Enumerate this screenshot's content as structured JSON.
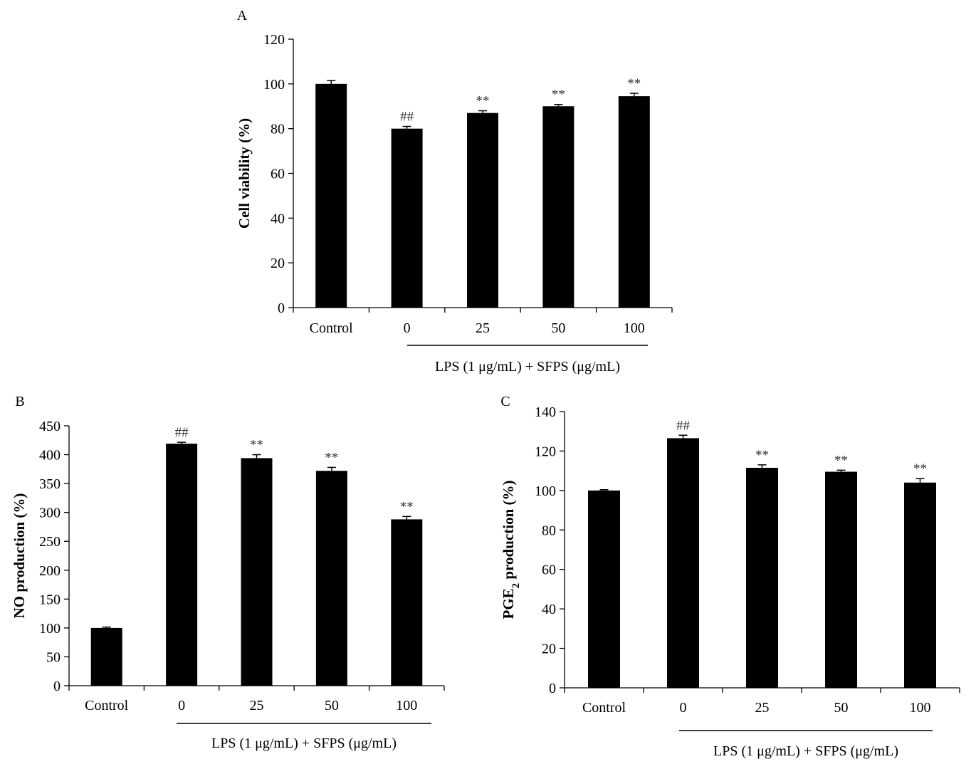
{
  "chart_data": [
    {
      "type": "bar",
      "panel": "A",
      "categories": [
        "Control",
        "0",
        "25",
        "50",
        "100"
      ],
      "values": [
        100,
        80,
        87,
        90,
        94.5
      ],
      "errors": [
        1.5,
        1,
        1,
        0.8,
        1.3
      ],
      "significance": [
        "",
        "##",
        "**",
        "**",
        "**"
      ],
      "ylabel": "Cell viability (%)",
      "group_label": "LPS (1 μg/mL) + SFPS (μg/mL)",
      "ylim": [
        0,
        120
      ],
      "yticks": [
        0,
        20,
        40,
        60,
        80,
        100,
        120
      ],
      "color": "#000000"
    },
    {
      "type": "bar",
      "panel": "B",
      "categories": [
        "Control",
        "0",
        "25",
        "50",
        "100"
      ],
      "values": [
        100,
        419,
        394,
        372,
        288
      ],
      "errors": [
        1.5,
        2.5,
        6,
        6,
        5
      ],
      "significance": [
        "",
        "##",
        "**",
        "**",
        "**"
      ],
      "ylabel": "NO production (%)",
      "group_label": "LPS (1 μg/mL) + SFPS (μg/mL)",
      "ylim": [
        0,
        450
      ],
      "yticks": [
        0,
        50,
        100,
        150,
        200,
        250,
        300,
        350,
        400,
        450
      ],
      "color": "#000000"
    },
    {
      "type": "bar",
      "panel": "C",
      "categories": [
        "Control",
        "0",
        "25",
        "50",
        "100"
      ],
      "values": [
        100,
        126.5,
        111.5,
        109.5,
        104
      ],
      "errors": [
        0.4,
        1.5,
        1.5,
        0.8,
        2
      ],
      "significance": [
        "",
        "##",
        "**",
        "**",
        "**"
      ],
      "ylabel": "PGE2 production (%)",
      "ylabel_parts": {
        "main": "PGE",
        "sub": "2",
        "rest": " production (%)"
      },
      "group_label": "LPS (1 μg/mL) + SFPS (μg/mL)",
      "ylim": [
        0,
        140
      ],
      "yticks": [
        0,
        20,
        40,
        60,
        80,
        100,
        120,
        140
      ],
      "color": "#000000"
    }
  ]
}
